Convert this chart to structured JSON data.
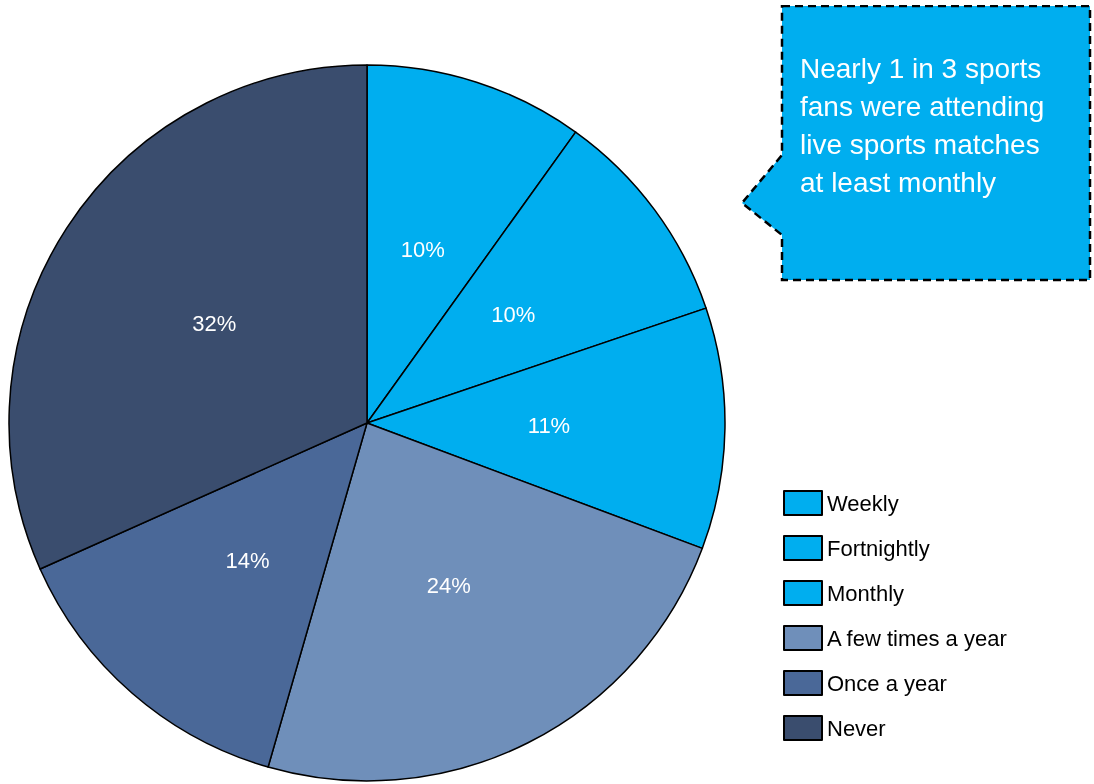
{
  "chart_data": {
    "type": "pie",
    "categories": [
      "Weekly",
      "Fortnightly",
      "Monthly",
      "A few times a year",
      "Once a year",
      "Never"
    ],
    "values": [
      10,
      10,
      11,
      24,
      14,
      32
    ],
    "colors": [
      "#00aeef",
      "#00aeef",
      "#00aeef",
      "#6f8fba",
      "#4a6898",
      "#3a4d6e"
    ],
    "value_labels": [
      "10%",
      "10%",
      "11%",
      "24%",
      "14%",
      "32%"
    ],
    "legend": "bottom right",
    "annotations": [
      "Nearly 1 in 3 sports fans were attending live sports matches at least monthly"
    ]
  }
}
